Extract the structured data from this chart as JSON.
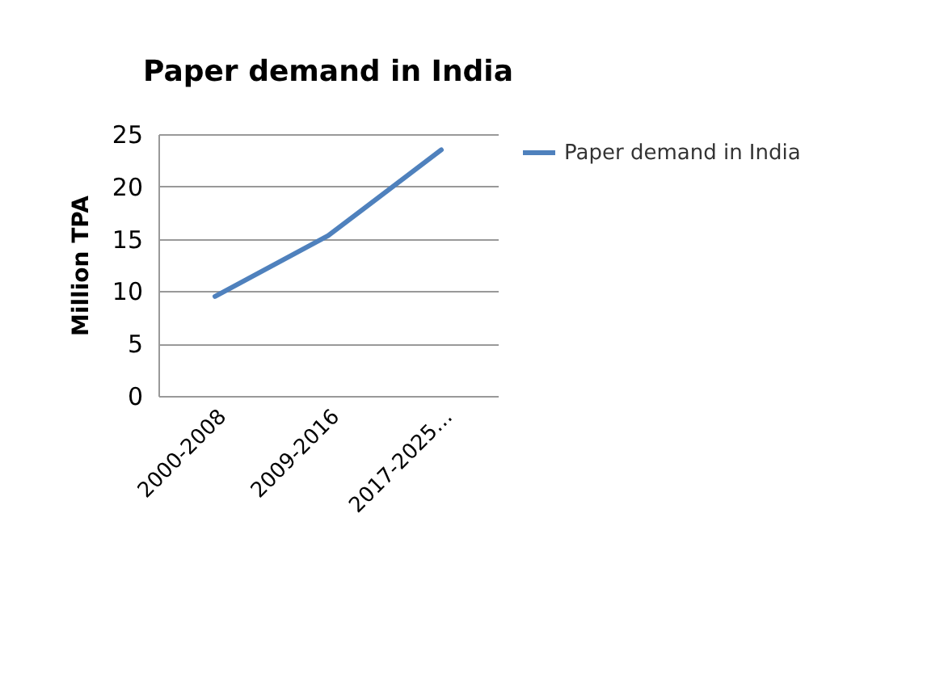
{
  "chart_data": {
    "type": "line",
    "title": "Paper demand in India",
    "ylabel": "Million TPA",
    "categories": [
      "2000-2008",
      "2009-2016",
      "2017-2025…"
    ],
    "series": [
      {
        "name": "Paper demand in India",
        "color": "#4f81bd",
        "values": [
          9.5,
          15.3,
          23.5
        ]
      }
    ],
    "ylim": [
      0,
      25
    ],
    "yticks": [
      0,
      5,
      10,
      15,
      20,
      25
    ],
    "grid": "y",
    "legend": "right",
    "marker": "none"
  }
}
